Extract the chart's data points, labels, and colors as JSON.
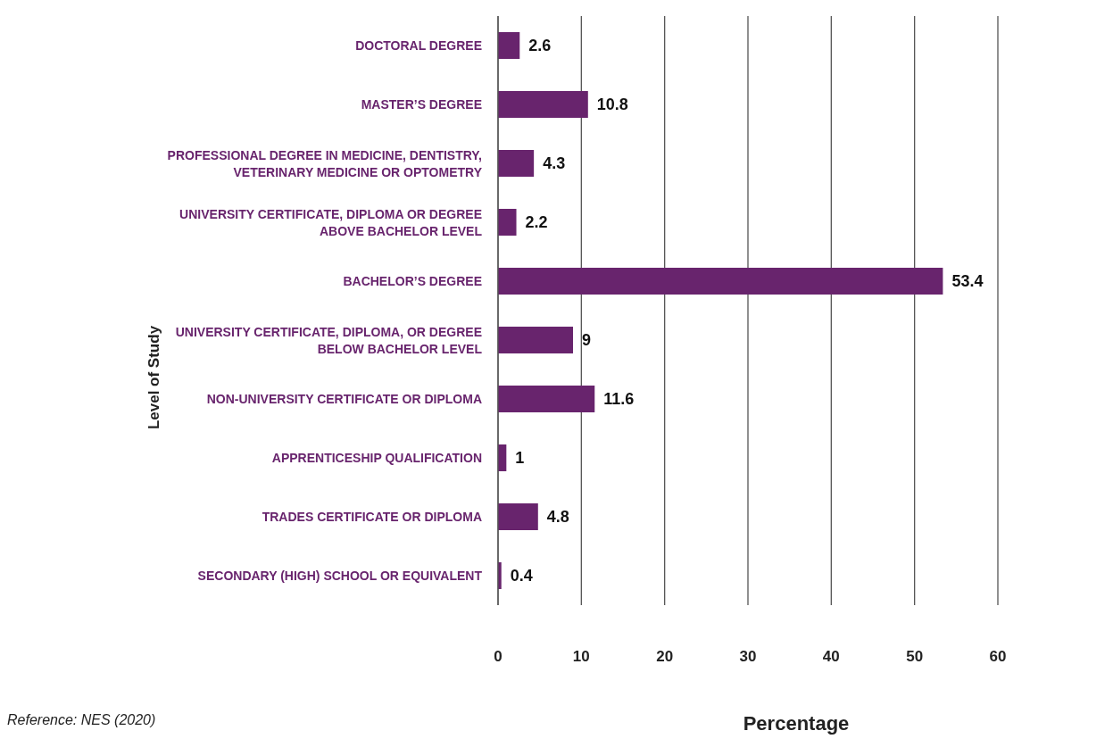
{
  "chart_data": {
    "type": "bar",
    "orientation": "horizontal",
    "xlabel": "Percentage",
    "ylabel": "Level of Study",
    "categories": [
      "DOCTORAL DEGREE",
      "MASTER’S DEGREE",
      "PROFESSIONAL DEGREE IN MEDICINE, DENTISTRY, VETERINARY MEDICINE OR OPTOMETRY",
      "UNIVERSITY CERTIFICATE, DIPLOMA OR DEGREE ABOVE BACHELOR LEVEL",
      "BACHELOR’S DEGREE",
      "UNIVERSITY CERTIFICATE, DIPLOMA, OR DEGREE BELOW BACHELOR LEVEL",
      "NON-UNIVERSITY CERTIFICATE OR DIPLOMA",
      "APPRENTICESHIP QUALIFICATION",
      "TRADES CERTIFICATE OR DIPLOMA",
      "SECONDARY (HIGH) SCHOOL OR EQUIVALENT"
    ],
    "values": [
      2.6,
      10.8,
      4.3,
      2.2,
      53.4,
      9,
      11.6,
      1,
      4.8,
      0.4
    ],
    "color": "#68246d",
    "data_labels": true,
    "xlim": [
      0,
      60
    ],
    "xticks": [
      0,
      10,
      20,
      30,
      40,
      50,
      60
    ],
    "grid": "x",
    "annotations": [
      "Reference: NES (2020)"
    ]
  }
}
